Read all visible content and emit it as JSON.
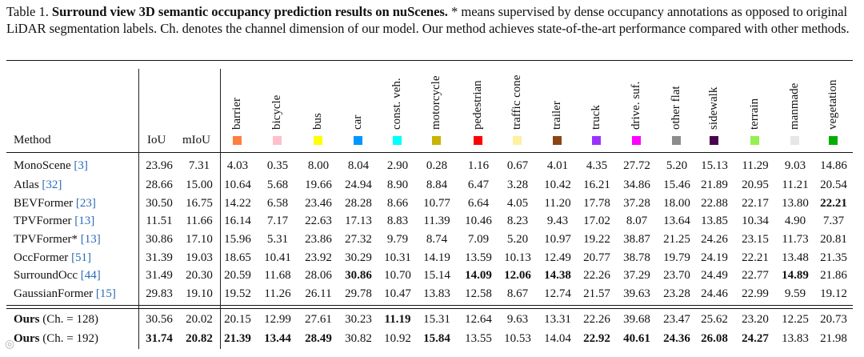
{
  "caption": {
    "label": "Table 1.",
    "title": "Surround view 3D semantic occupancy prediction results on nuScenes.",
    "body": "* means supervised by dense occupancy annotations as opposed to original LiDAR segmentation labels. Ch. denotes the channel dimension of our model. Our method achieves state-of-the-art performance compared with other methods."
  },
  "header": {
    "method": "Method",
    "iou": "IoU",
    "miou": "mIoU"
  },
  "classes": [
    {
      "name": "barrier",
      "color": "#ff7f3f"
    },
    {
      "name": "bicycle",
      "color": "#ffc0cb"
    },
    {
      "name": "bus",
      "color": "#ffff00"
    },
    {
      "name": "car",
      "color": "#0096ff"
    },
    {
      "name": "const. veh.",
      "color": "#00ffff"
    },
    {
      "name": "motorcycle",
      "color": "#c8b400"
    },
    {
      "name": "pedestrian",
      "color": "#ff0000"
    },
    {
      "name": "traffic cone",
      "color": "#fff0a0"
    },
    {
      "name": "trailer",
      "color": "#8b4513"
    },
    {
      "name": "truck",
      "color": "#9a32ff"
    },
    {
      "name": "drive. suf.",
      "color": "#ff00ff"
    },
    {
      "name": "other flat",
      "color": "#8c8c8c"
    },
    {
      "name": "sidewalk",
      "color": "#4b0050"
    },
    {
      "name": "terrain",
      "color": "#96f050"
    },
    {
      "name": "manmade",
      "color": "#e6e6e6"
    },
    {
      "name": "vegetation",
      "color": "#00af00"
    }
  ],
  "rows": [
    {
      "name": "MonoScene",
      "ref": "[3]",
      "values": [
        "23.96",
        "7.31",
        "4.03",
        "0.35",
        "8.00",
        "8.04",
        "2.90",
        "0.28",
        "1.16",
        "0.67",
        "4.01",
        "4.35",
        "27.72",
        "5.20",
        "15.13",
        "11.29",
        "9.03",
        "14.86"
      ],
      "bold": []
    },
    {
      "name": "Atlas",
      "ref": "[32]",
      "values": [
        "28.66",
        "15.00",
        "10.64",
        "5.68",
        "19.66",
        "24.94",
        "8.90",
        "8.84",
        "6.47",
        "3.28",
        "10.42",
        "16.21",
        "34.86",
        "15.46",
        "21.89",
        "20.95",
        "11.21",
        "20.54"
      ],
      "bold": []
    },
    {
      "name": "BEVFormer",
      "ref": "[23]",
      "values": [
        "30.50",
        "16.75",
        "14.22",
        "6.58",
        "23.46",
        "28.28",
        "8.66",
        "10.77",
        "6.64",
        "4.05",
        "11.20",
        "17.78",
        "37.28",
        "18.00",
        "22.88",
        "22.17",
        "13.80",
        "22.21"
      ],
      "bold": [
        17
      ]
    },
    {
      "name": "TPVFormer",
      "ref": "[13]",
      "values": [
        "11.51",
        "11.66",
        "16.14",
        "7.17",
        "22.63",
        "17.13",
        "8.83",
        "11.39",
        "10.46",
        "8.23",
        "9.43",
        "17.02",
        "8.07",
        "13.64",
        "13.85",
        "10.34",
        "4.90",
        "7.37"
      ],
      "bold": []
    },
    {
      "name": "TPVFormer*",
      "ref": "[13]",
      "values": [
        "30.86",
        "17.10",
        "15.96",
        "5.31",
        "23.86",
        "27.32",
        "9.79",
        "8.74",
        "7.09",
        "5.20",
        "10.97",
        "19.22",
        "38.87",
        "21.25",
        "24.26",
        "23.15",
        "11.73",
        "20.81"
      ],
      "bold": []
    },
    {
      "name": "OccFormer",
      "ref": "[51]",
      "values": [
        "31.39",
        "19.03",
        "18.65",
        "10.41",
        "23.92",
        "30.29",
        "10.31",
        "14.19",
        "13.59",
        "10.13",
        "12.49",
        "20.77",
        "38.78",
        "19.79",
        "24.19",
        "22.21",
        "13.48",
        "21.35"
      ],
      "bold": []
    },
    {
      "name": "SurroundOcc",
      "ref": "[44]",
      "values": [
        "31.49",
        "20.30",
        "20.59",
        "11.68",
        "28.06",
        "30.86",
        "10.70",
        "15.14",
        "14.09",
        "12.06",
        "14.38",
        "22.26",
        "37.29",
        "23.70",
        "24.49",
        "22.77",
        "14.89",
        "21.86"
      ],
      "bold": [
        5,
        8,
        9,
        10,
        16
      ]
    },
    {
      "name": "GaussianFormer",
      "ref": "[15]",
      "values": [
        "29.83",
        "19.10",
        "19.52",
        "11.26",
        "26.11",
        "29.78",
        "10.47",
        "13.83",
        "12.58",
        "8.67",
        "12.74",
        "21.57",
        "39.63",
        "23.28",
        "24.46",
        "22.99",
        "9.59",
        "19.12"
      ],
      "bold": []
    }
  ],
  "ours": [
    {
      "name": "Ours",
      "suffix": "(Ch. = 128)",
      "values": [
        "30.56",
        "20.02",
        "20.15",
        "12.99",
        "27.61",
        "30.23",
        "11.19",
        "15.31",
        "12.64",
        "9.63",
        "13.31",
        "22.26",
        "39.68",
        "23.47",
        "25.62",
        "23.20",
        "12.25",
        "20.73"
      ],
      "bold": [
        6
      ]
    },
    {
      "name": "Ours",
      "suffix": "(Ch. = 192)",
      "values": [
        "31.74",
        "20.82",
        "21.39",
        "13.44",
        "28.49",
        "30.82",
        "10.92",
        "15.84",
        "13.55",
        "10.53",
        "14.04",
        "22.92",
        "40.61",
        "24.36",
        "26.08",
        "24.27",
        "13.83",
        "21.98"
      ],
      "bold": [
        0,
        1,
        2,
        3,
        4,
        7,
        11,
        12,
        13,
        14,
        15
      ]
    }
  ]
}
